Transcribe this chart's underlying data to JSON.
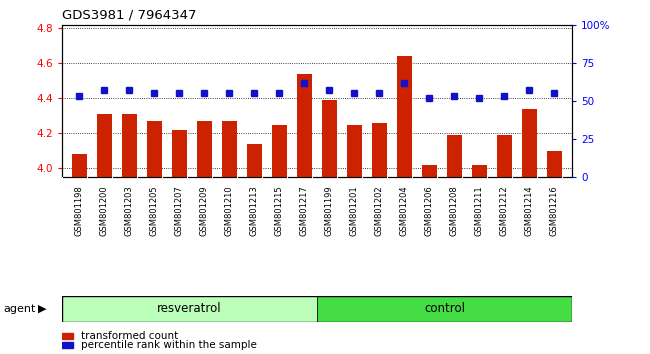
{
  "title": "GDS3981 / 7964347",
  "samples": [
    "GSM801198",
    "GSM801200",
    "GSM801203",
    "GSM801205",
    "GSM801207",
    "GSM801209",
    "GSM801210",
    "GSM801213",
    "GSM801215",
    "GSM801217",
    "GSM801199",
    "GSM801201",
    "GSM801202",
    "GSM801204",
    "GSM801206",
    "GSM801208",
    "GSM801211",
    "GSM801212",
    "GSM801214",
    "GSM801216"
  ],
  "bar_values": [
    4.08,
    4.31,
    4.31,
    4.27,
    4.22,
    4.27,
    4.27,
    4.14,
    4.25,
    4.54,
    4.39,
    4.25,
    4.26,
    4.64,
    4.02,
    4.19,
    4.02,
    4.19,
    4.34,
    4.1
  ],
  "percentile_values": [
    53,
    57,
    57,
    55,
    55,
    55,
    55,
    55,
    55,
    62,
    57,
    55,
    55,
    62,
    52,
    53,
    52,
    53,
    57,
    55
  ],
  "resveratrol_count": 10,
  "control_count": 10,
  "ylim_left": [
    3.95,
    4.82
  ],
  "ylim_right": [
    0,
    100
  ],
  "yticks_left": [
    4.0,
    4.2,
    4.4,
    4.6,
    4.8
  ],
  "yticks_right": [
    0,
    25,
    50,
    75,
    100
  ],
  "bar_color": "#cc2200",
  "dot_color": "#1111cc",
  "resv_color": "#bbffbb",
  "ctrl_color": "#44dd44",
  "label_bar": "transformed count",
  "label_dot": "percentile rank within the sample",
  "group_label_resv": "resveratrol",
  "group_label_ctrl": "control",
  "agent_label": "agent",
  "tick_bg_color": "#c8c8c8",
  "fig_bg": "#ffffff"
}
